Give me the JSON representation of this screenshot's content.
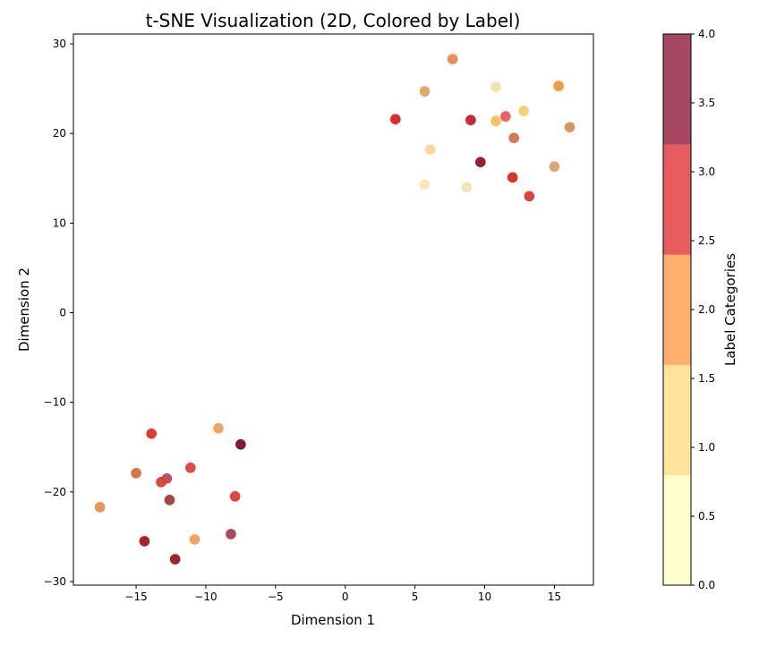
{
  "chart_data": {
    "type": "scatter",
    "title": "t-SNE Visualization (2D, Colored by Label)",
    "xlabel": "Dimension 1",
    "ylabel": "Dimension 2",
    "xlim": [
      -19.5,
      17.8
    ],
    "ylim": [
      -30.4,
      31.1
    ],
    "xticks": [
      -15,
      -10,
      -5,
      0,
      5,
      10,
      15
    ],
    "yticks": [
      -30,
      -20,
      -10,
      0,
      10,
      20,
      30
    ],
    "grid": false,
    "colorbar": {
      "label": "Label Categories",
      "range": [
        0,
        4
      ],
      "ticks": [
        "0.0",
        "0.5",
        "1.0",
        "1.5",
        "2.0",
        "2.5",
        "3.0",
        "3.5",
        "4.0"
      ],
      "bands": [
        {
          "from": 0.0,
          "to": 0.8,
          "color": "#ffffcc"
        },
        {
          "from": 0.8,
          "to": 1.6,
          "color": "#fee39a"
        },
        {
          "from": 1.6,
          "to": 2.4,
          "color": "#feaf6c"
        },
        {
          "from": 2.4,
          "to": 3.2,
          "color": "#e85b5e"
        },
        {
          "from": 3.2,
          "to": 4.0,
          "color": "#a74862"
        }
      ]
    },
    "points": [
      {
        "x": 7.7,
        "y": 28.3,
        "color": "#f0874a"
      },
      {
        "x": 5.7,
        "y": 24.7,
        "color": "#dea460"
      },
      {
        "x": 10.8,
        "y": 25.2,
        "color": "#f6e0a6"
      },
      {
        "x": 15.3,
        "y": 25.3,
        "color": "#f0953e"
      },
      {
        "x": 12.8,
        "y": 22.5,
        "color": "#f5cd6a"
      },
      {
        "x": 3.6,
        "y": 21.6,
        "color": "#e02020"
      },
      {
        "x": 9.0,
        "y": 21.5,
        "color": "#cc1c28"
      },
      {
        "x": 10.8,
        "y": 21.4,
        "color": "#fbbd58"
      },
      {
        "x": 11.5,
        "y": 21.9,
        "color": "#ee5a55"
      },
      {
        "x": 16.1,
        "y": 20.7,
        "color": "#d8915a"
      },
      {
        "x": 12.1,
        "y": 19.5,
        "color": "#d3724b"
      },
      {
        "x": 6.1,
        "y": 18.2,
        "color": "#f5d7a2"
      },
      {
        "x": 9.7,
        "y": 16.8,
        "color": "#98141f"
      },
      {
        "x": 15.0,
        "y": 16.3,
        "color": "#e2a066"
      },
      {
        "x": 12.0,
        "y": 15.1,
        "color": "#e02820"
      },
      {
        "x": 5.7,
        "y": 14.3,
        "color": "#f8e6b0"
      },
      {
        "x": 8.7,
        "y": 14.0,
        "color": "#f6e3b0"
      },
      {
        "x": 13.2,
        "y": 13.0,
        "color": "#e03a2c"
      },
      {
        "x": -9.1,
        "y": -12.9,
        "color": "#f3a050"
      },
      {
        "x": -13.9,
        "y": -13.5,
        "color": "#e03226"
      },
      {
        "x": -7.5,
        "y": -14.7,
        "color": "#820c22"
      },
      {
        "x": -15.0,
        "y": -17.9,
        "color": "#d96a3e"
      },
      {
        "x": -11.1,
        "y": -17.3,
        "color": "#e04038"
      },
      {
        "x": -12.8,
        "y": -18.5,
        "color": "#b84860"
      },
      {
        "x": -13.2,
        "y": -18.9,
        "color": "#e23a28"
      },
      {
        "x": -7.9,
        "y": -20.5,
        "color": "#e03b30"
      },
      {
        "x": -12.6,
        "y": -20.9,
        "color": "#a83a34"
      },
      {
        "x": -17.6,
        "y": -21.7,
        "color": "#e8904a"
      },
      {
        "x": -8.2,
        "y": -24.7,
        "color": "#a63e52"
      },
      {
        "x": -10.8,
        "y": -25.3,
        "color": "#f3a050"
      },
      {
        "x": -14.4,
        "y": -25.5,
        "color": "#a8141e"
      },
      {
        "x": -12.2,
        "y": -27.5,
        "color": "#a0181e"
      }
    ]
  }
}
